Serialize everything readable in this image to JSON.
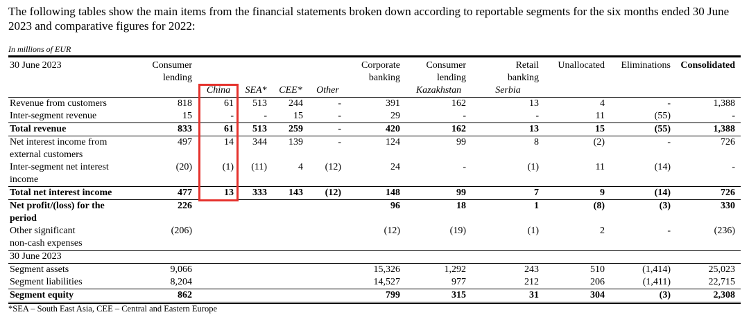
{
  "intro": "The following tables show the main items from the financial statements broken down according to reportable segments for the six months ended 30 June 2023 and comparative figures for 2022:",
  "unit": "In millions of EUR",
  "table": {
    "period": "30 June 2023",
    "columns": [
      "Consumer\nlending",
      null,
      null,
      null,
      null,
      "Corporate\nbanking",
      "Consumer\nlending",
      "Retail\nbanking",
      "Unallocated",
      "Eliminations",
      "Consolidated"
    ],
    "subcolumns": [
      null,
      "China",
      "SEA*",
      "CEE*",
      "Other",
      null,
      "Kazakhstan",
      "Serbia",
      null,
      null,
      null
    ],
    "rows": [
      {
        "label": "Revenue from customers",
        "cells": [
          "818",
          "61",
          "513",
          "244",
          "-",
          "391",
          "162",
          "13",
          "4",
          "-",
          "1,388"
        ]
      },
      {
        "label": "Inter-segment revenue",
        "cells": [
          "15",
          "-",
          "-",
          "15",
          "-",
          "29",
          "-",
          "-",
          "11",
          "(55)",
          "-"
        ]
      },
      {
        "label": "Total revenue",
        "cells": [
          "833",
          "61",
          "513",
          "259",
          "-",
          "420",
          "162",
          "13",
          "15",
          "(55)",
          "1,388"
        ]
      },
      {
        "label": "Net interest income from\nexternal customers",
        "cells": [
          "497",
          "14",
          "344",
          "139",
          "-",
          "124",
          "99",
          "8",
          "(2)",
          "-",
          "726"
        ]
      },
      {
        "label": "Inter-segment net interest\nincome",
        "cells": [
          "(20)",
          "(1)",
          "(11)",
          "4",
          "(12)",
          "24",
          "-",
          "(1)",
          "11",
          "(14)",
          "-"
        ]
      },
      {
        "label": "Total net interest income",
        "cells": [
          "477",
          "13",
          "333",
          "143",
          "(12)",
          "148",
          "99",
          "7",
          "9",
          "(14)",
          "726"
        ]
      },
      {
        "label": "Net profit/(loss) for the\nperiod",
        "cells": [
          "226",
          null,
          null,
          null,
          null,
          "96",
          "18",
          "1",
          "(8)",
          "(3)",
          "330"
        ]
      },
      {
        "label": "Other significant\nnon-cash expenses",
        "cells": [
          "(206)",
          null,
          null,
          null,
          null,
          "(12)",
          "(19)",
          "(1)",
          "2",
          "-",
          "(236)"
        ]
      },
      {
        "label": "30 June 2023"
      },
      {
        "label": "Segment assets",
        "cells": [
          "9,066",
          null,
          null,
          null,
          null,
          "15,326",
          "1,292",
          "243",
          "510",
          "(1,414)",
          "25,023"
        ]
      },
      {
        "label": "Segment liabilities",
        "cells": [
          "8,204",
          null,
          null,
          null,
          null,
          "14,527",
          "977",
          "212",
          "206",
          "(1,411)",
          "22,715"
        ]
      },
      {
        "label": "Segment equity",
        "cells": [
          "862",
          null,
          null,
          null,
          null,
          "799",
          "315",
          "31",
          "304",
          "(3)",
          "2,308"
        ]
      }
    ]
  },
  "footnote": "*SEA – South East Asia, CEE – Central and Eastern Europe"
}
